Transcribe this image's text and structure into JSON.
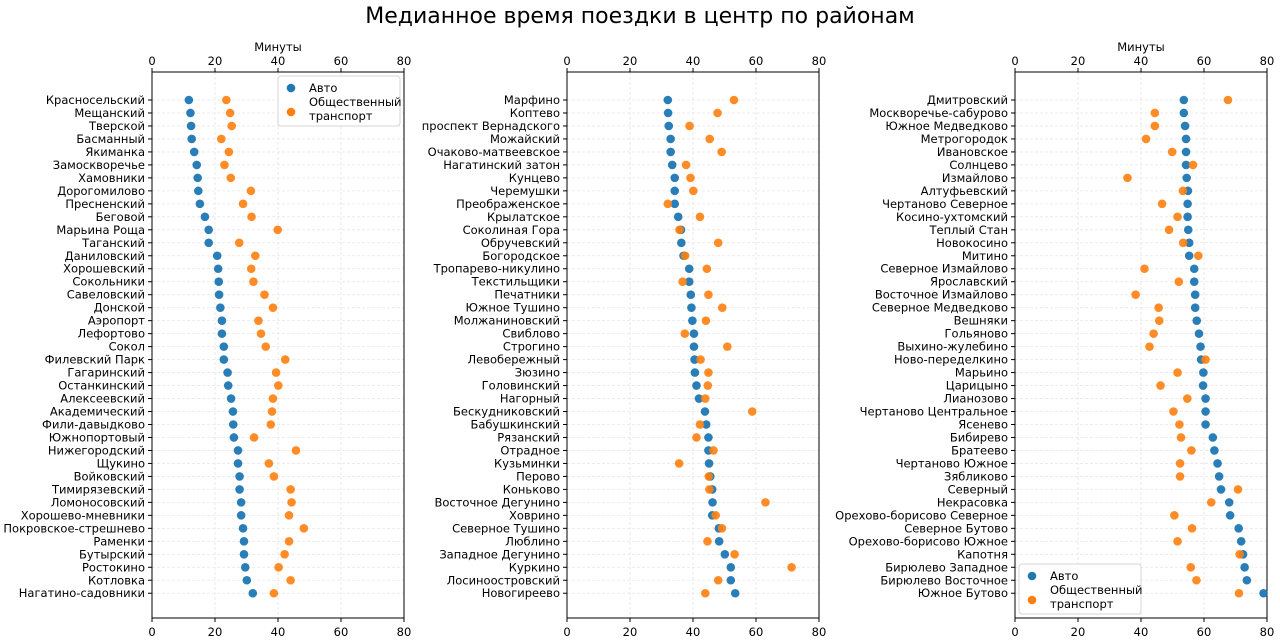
{
  "chart_data": {
    "type": "scatter",
    "title": "Медианное время поездки в центр по районам",
    "series_names": [
      "Авто",
      "Общественный транспорт"
    ],
    "legend_labels": [
      [
        "Авто"
      ],
      [
        "Общественный",
        "транспорт"
      ]
    ],
    "colors": {
      "auto": "#1f77b4",
      "public": "#ff7f0e"
    },
    "grid": true,
    "panels": [
      {
        "xlabel": "Минуты",
        "xlim": [
          0,
          80
        ],
        "xticks": [
          0,
          20,
          40,
          60,
          80
        ],
        "legend": "top-right",
        "categories": [
          "Красносельский",
          "Мещанский",
          "Тверской",
          "Басманный",
          "Якиманка",
          "Замоскворечье",
          "Хамовники",
          "Дорогомилово",
          "Пресненский",
          "Беговой",
          "Марьина Роща",
          "Таганский",
          "Даниловский",
          "Хорошевский",
          "Сокольники",
          "Савеловский",
          "Донской",
          "Аэропорт",
          "Лефортово",
          "Сокол",
          "Филевский Парк",
          "Гагаринский",
          "Останкинский",
          "Алексеевский",
          "Академический",
          "Фили-давыдково",
          "Южнопортовый",
          "Нижегородский",
          "Щукино",
          "Войковский",
          "Тимирязевский",
          "Ломоносовский",
          "Хорошево-мневники",
          "Покровское-стрешнево",
          "Раменки",
          "Бутырский",
          "Ростокино",
          "Котловка",
          "Нагатино-садовники"
        ],
        "auto": [
          11.7,
          12.2,
          12.4,
          12.6,
          13.4,
          14.2,
          14.5,
          14.7,
          15.2,
          16.8,
          18.0,
          18.0,
          20.7,
          21.0,
          21.2,
          21.3,
          21.7,
          22.2,
          22.2,
          22.8,
          22.8,
          24.0,
          24.2,
          25.1,
          25.7,
          25.8,
          26.0,
          27.3,
          27.3,
          27.8,
          27.8,
          28.3,
          28.3,
          28.9,
          29.2,
          29.2,
          29.6,
          30.1,
          32.0
        ],
        "public": [
          23.6,
          24.8,
          25.3,
          22.0,
          24.4,
          23.0,
          25.0,
          31.4,
          28.9,
          31.6,
          39.9,
          27.7,
          32.8,
          31.5,
          32.2,
          35.7,
          38.4,
          33.8,
          34.6,
          36.1,
          42.3,
          39.4,
          40.1,
          38.4,
          38.1,
          37.7,
          32.4,
          45.7,
          37.1,
          38.7,
          44.0,
          44.3,
          43.5,
          48.2,
          43.5,
          42.1,
          40.2,
          44.0,
          38.7
        ]
      },
      {
        "xlabel": "",
        "xlim": [
          0,
          80
        ],
        "xticks": [
          0,
          20,
          40,
          60,
          80
        ],
        "legend": "none",
        "categories": [
          "Марфино",
          "Коптево",
          "проспект Вернадского",
          "Можайский",
          "Очаково-матвеевское",
          "Нагатинский затон",
          "Кунцево",
          "Черемушки",
          "Преображенское",
          "Крылатское",
          "Соколиная Гора",
          "Обручевский",
          "Богородское",
          "Тропарево-никулино",
          "Текстильщики",
          "Печатники",
          "Южное Тушино",
          "Молжаниновский",
          "Свиблово",
          "Строгино",
          "Левобережный",
          "Зюзино",
          "Головинский",
          "Нагорный",
          "Бескудниковский",
          "Бабушкинский",
          "Рязанский",
          "Отрадное",
          "Кузьминки",
          "Перово",
          "Коньково",
          "Восточное Дегунино",
          "Ховрино",
          "Северное Тушино",
          "Люблино",
          "Западное Дегунино",
          "Куркино",
          "Лосиноостровский",
          "Новогиреево"
        ],
        "auto": [
          32.0,
          32.1,
          32.3,
          32.9,
          32.9,
          33.4,
          34.2,
          34.2,
          34.2,
          35.3,
          36.2,
          36.3,
          37.0,
          38.8,
          38.8,
          39.3,
          39.5,
          39.8,
          40.3,
          40.3,
          40.5,
          40.6,
          41.1,
          41.9,
          43.8,
          44.2,
          44.9,
          44.9,
          45.1,
          45.5,
          46.1,
          46.2,
          46.1,
          48.2,
          48.3,
          50.1,
          52.0,
          52.0,
          53.4
        ],
        "public": [
          53.0,
          47.8,
          38.9,
          45.3,
          49.1,
          37.8,
          39.2,
          40.1,
          32.0,
          42.2,
          35.7,
          48.0,
          37.5,
          44.4,
          36.7,
          44.9,
          49.3,
          44.1,
          37.4,
          50.9,
          42.4,
          44.9,
          44.7,
          43.9,
          58.8,
          42.2,
          41.1,
          46.5,
          35.6,
          45.0,
          45.2,
          63.0,
          47.2,
          49.2,
          44.6,
          53.2,
          71.3,
          48.0,
          43.9
        ]
      },
      {
        "xlabel": "Минуты",
        "xlim": [
          0,
          80
        ],
        "xticks": [
          0,
          20,
          40,
          60,
          80
        ],
        "legend": "bottom-left",
        "categories": [
          "Дмитровский",
          "Москворечье-сабурово",
          "Южное Медведково",
          "Метрогородок",
          "Ивановское",
          "Солнцево",
          "Измайлово",
          "Алтуфьевский",
          "Чертаново Северное",
          "Косино-ухтомский",
          "Теплый Стан",
          "Новокосино",
          "Митино",
          "Северное Измайлово",
          "Ярославский",
          "Восточное Измайлово",
          "Северное Медведково",
          "Вешняки",
          "Гольяново",
          "Выхино-жулебино",
          "Ново-переделкино",
          "Марьино",
          "Царицыно",
          "Лианозово",
          "Чертаново Центральное",
          "Ясенево",
          "Бибирево",
          "Братеево",
          "Чертаново Южное",
          "Зябликово",
          "Северный",
          "Некрасовка",
          "Орехово-борисово Северное",
          "Северное Бутово",
          "Орехово-борисово Южное",
          "Капотня",
          "Бирюлево Западное",
          "Бирюлево Восточное",
          "Южное Бутово"
        ],
        "auto": [
          53.6,
          53.6,
          54.0,
          54.3,
          54.3,
          54.3,
          54.5,
          54.9,
          54.8,
          54.8,
          55.0,
          55.3,
          55.3,
          56.9,
          56.9,
          57.2,
          57.2,
          57.7,
          58.4,
          58.9,
          59.1,
          59.8,
          59.7,
          60.5,
          60.5,
          60.5,
          62.8,
          63.3,
          64.3,
          64.8,
          65.4,
          68.0,
          68.3,
          71.0,
          71.8,
          72.4,
          72.9,
          73.6,
          78.9
        ],
        "public": [
          67.6,
          44.4,
          44.4,
          41.6,
          49.9,
          56.5,
          35.7,
          53.3,
          46.7,
          51.6,
          48.9,
          53.4,
          58.2,
          41.1,
          52.0,
          38.3,
          45.6,
          45.8,
          44.0,
          42.7,
          60.5,
          51.6,
          46.2,
          54.7,
          50.3,
          52.2,
          52.7,
          56.0,
          52.4,
          52.4,
          70.8,
          62.3,
          50.6,
          56.2,
          51.6,
          71.3,
          55.8,
          57.6,
          71.1
        ]
      }
    ]
  }
}
